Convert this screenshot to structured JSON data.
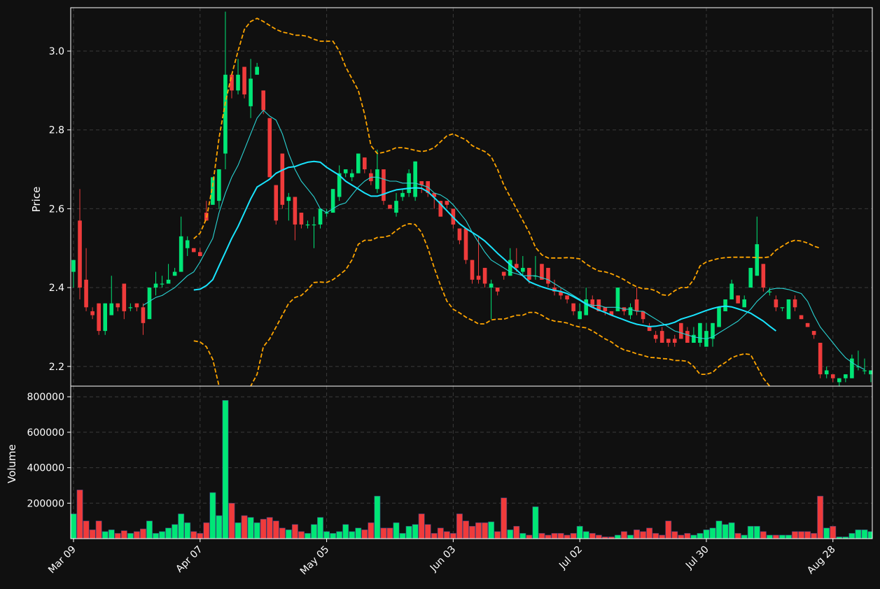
{
  "colors": {
    "background": "#101010",
    "up": "#00e676",
    "down": "#ef3b3b",
    "band": "#ffa500",
    "ma_fast": "#2ad4d4",
    "ma_slow": "#19e5ff",
    "grid": "#3a3a3a",
    "text": "#ffffff"
  },
  "chart_data": {
    "type": "candlestick",
    "title": "",
    "price_label": "Price",
    "volume_label": "Volume",
    "price_ylim": [
      2.15,
      3.11
    ],
    "volume_ylim": [
      0,
      860000
    ],
    "price_ticks": [
      "2.2",
      "2.4",
      "2.6",
      "2.8",
      "3.0"
    ],
    "volume_ticks": [
      "200000",
      "400000",
      "600000",
      "800000"
    ],
    "x_ticks": [
      {
        "index": 0,
        "label": "Mar 09"
      },
      {
        "index": 20,
        "label": "Apr 07"
      },
      {
        "index": 40,
        "label": "May 05"
      },
      {
        "index": 60,
        "label": "Jun 03"
      },
      {
        "index": 80,
        "label": "Jul 02"
      },
      {
        "index": 100,
        "label": "Jul 30"
      },
      {
        "index": 120,
        "label": "Aug 28"
      }
    ],
    "grid": true,
    "candles": [
      [
        2.44,
        2.47,
        2.4,
        2.47,
        140000
      ],
      [
        2.57,
        2.65,
        2.37,
        2.4,
        275000
      ],
      [
        2.42,
        2.5,
        2.34,
        2.35,
        100000
      ],
      [
        2.34,
        2.35,
        2.32,
        2.33,
        50000
      ],
      [
        2.36,
        2.36,
        2.28,
        2.29,
        100000
      ],
      [
        2.29,
        2.36,
        2.28,
        2.36,
        40000
      ],
      [
        2.33,
        2.43,
        2.33,
        2.36,
        50000
      ],
      [
        2.36,
        2.36,
        2.34,
        2.35,
        30000
      ],
      [
        2.41,
        2.41,
        2.32,
        2.34,
        45000
      ],
      [
        2.35,
        2.36,
        2.34,
        2.35,
        30000
      ],
      [
        2.36,
        2.36,
        2.34,
        2.35,
        40000
      ],
      [
        2.35,
        2.36,
        2.28,
        2.31,
        55000
      ],
      [
        2.32,
        2.4,
        2.32,
        2.4,
        100000
      ],
      [
        2.4,
        2.44,
        2.38,
        2.41,
        30000
      ],
      [
        2.41,
        2.43,
        2.4,
        2.41,
        40000
      ],
      [
        2.41,
        2.46,
        2.41,
        2.42,
        60000
      ],
      [
        2.43,
        2.45,
        2.43,
        2.44,
        80000
      ],
      [
        2.44,
        2.58,
        2.44,
        2.53,
        140000
      ],
      [
        2.5,
        2.53,
        2.48,
        2.52,
        90000
      ],
      [
        2.5,
        2.5,
        2.49,
        2.49,
        40000
      ],
      [
        2.49,
        2.5,
        2.48,
        2.48,
        30000
      ],
      [
        2.59,
        2.62,
        2.57,
        2.57,
        90000
      ],
      [
        2.61,
        2.68,
        2.61,
        2.68,
        260000
      ],
      [
        2.62,
        2.7,
        2.6,
        2.7,
        130000
      ],
      [
        2.74,
        3.1,
        2.7,
        2.94,
        780000
      ],
      [
        2.94,
        2.94,
        2.88,
        2.9,
        200000
      ],
      [
        2.9,
        2.98,
        2.89,
        2.94,
        90000
      ],
      [
        2.96,
        2.96,
        2.88,
        2.89,
        130000
      ],
      [
        2.86,
        2.98,
        2.83,
        2.93,
        120000
      ],
      [
        2.94,
        2.97,
        2.94,
        2.96,
        90000
      ],
      [
        2.9,
        2.9,
        2.84,
        2.85,
        110000
      ],
      [
        2.83,
        2.83,
        2.68,
        2.68,
        120000
      ],
      [
        2.66,
        2.66,
        2.56,
        2.57,
        100000
      ],
      [
        2.74,
        2.74,
        2.6,
        2.61,
        60000
      ],
      [
        2.62,
        2.64,
        2.57,
        2.63,
        50000
      ],
      [
        2.63,
        2.63,
        2.52,
        2.56,
        80000
      ],
      [
        2.59,
        2.59,
        2.55,
        2.56,
        40000
      ],
      [
        2.56,
        2.57,
        2.55,
        2.56,
        30000
      ],
      [
        2.56,
        2.58,
        2.5,
        2.56,
        80000
      ],
      [
        2.56,
        2.6,
        2.55,
        2.6,
        120000
      ],
      [
        2.59,
        2.6,
        2.58,
        2.59,
        40000
      ],
      [
        2.59,
        2.65,
        2.59,
        2.65,
        30000
      ],
      [
        2.63,
        2.71,
        2.62,
        2.69,
        40000
      ],
      [
        2.69,
        2.7,
        2.68,
        2.7,
        80000
      ],
      [
        2.68,
        2.7,
        2.67,
        2.69,
        40000
      ],
      [
        2.69,
        2.74,
        2.69,
        2.74,
        60000
      ],
      [
        2.73,
        2.73,
        2.69,
        2.7,
        50000
      ],
      [
        2.69,
        2.7,
        2.66,
        2.67,
        90000
      ],
      [
        2.65,
        2.75,
        2.64,
        2.7,
        240000
      ],
      [
        2.7,
        2.7,
        2.61,
        2.62,
        60000
      ],
      [
        2.61,
        2.61,
        2.6,
        2.6,
        60000
      ],
      [
        2.59,
        2.64,
        2.58,
        2.62,
        90000
      ],
      [
        2.63,
        2.65,
        2.62,
        2.64,
        30000
      ],
      [
        2.64,
        2.7,
        2.63,
        2.69,
        70000
      ],
      [
        2.63,
        2.72,
        2.62,
        2.72,
        80000
      ],
      [
        2.67,
        2.67,
        2.64,
        2.66,
        140000
      ],
      [
        2.67,
        2.67,
        2.63,
        2.64,
        80000
      ],
      [
        2.64,
        2.64,
        2.6,
        2.63,
        30000
      ],
      [
        2.62,
        2.62,
        2.58,
        2.58,
        60000
      ],
      [
        2.62,
        2.62,
        2.6,
        2.61,
        40000
      ],
      [
        2.6,
        2.6,
        2.55,
        2.56,
        30000
      ],
      [
        2.55,
        2.55,
        2.51,
        2.52,
        140000
      ],
      [
        2.55,
        2.55,
        2.46,
        2.47,
        100000
      ],
      [
        2.47,
        2.47,
        2.41,
        2.42,
        70000
      ],
      [
        2.43,
        2.53,
        2.41,
        2.42,
        90000
      ],
      [
        2.45,
        2.45,
        2.4,
        2.41,
        90000
      ],
      [
        2.4,
        2.42,
        2.32,
        2.41,
        95000
      ],
      [
        2.4,
        2.4,
        2.38,
        2.39,
        40000
      ],
      [
        2.44,
        2.44,
        2.42,
        2.43,
        230000
      ],
      [
        2.43,
        2.5,
        2.43,
        2.47,
        50000
      ],
      [
        2.46,
        2.5,
        2.44,
        2.45,
        70000
      ],
      [
        2.44,
        2.48,
        2.43,
        2.45,
        30000
      ],
      [
        2.45,
        2.45,
        2.41,
        2.42,
        20000
      ],
      [
        2.43,
        2.48,
        2.42,
        2.43,
        180000
      ],
      [
        2.46,
        2.46,
        2.42,
        2.42,
        30000
      ],
      [
        2.45,
        2.45,
        2.4,
        2.41,
        20000
      ],
      [
        2.4,
        2.42,
        2.38,
        2.39,
        30000
      ],
      [
        2.39,
        2.4,
        2.37,
        2.38,
        30000
      ],
      [
        2.38,
        2.38,
        2.36,
        2.37,
        20000
      ],
      [
        2.36,
        2.36,
        2.33,
        2.34,
        30000
      ],
      [
        2.32,
        2.36,
        2.32,
        2.34,
        70000
      ],
      [
        2.33,
        2.4,
        2.33,
        2.37,
        40000
      ],
      [
        2.37,
        2.38,
        2.35,
        2.35,
        30000
      ],
      [
        2.37,
        2.37,
        2.34,
        2.34,
        20000
      ],
      [
        2.35,
        2.35,
        2.33,
        2.34,
        10000
      ],
      [
        2.34,
        2.34,
        2.33,
        2.33,
        10000
      ],
      [
        2.34,
        2.4,
        2.34,
        2.4,
        20000
      ],
      [
        2.35,
        2.35,
        2.33,
        2.34,
        40000
      ],
      [
        2.33,
        2.36,
        2.32,
        2.35,
        20000
      ],
      [
        2.37,
        2.4,
        2.33,
        2.34,
        50000
      ],
      [
        2.34,
        2.34,
        2.31,
        2.32,
        40000
      ],
      [
        2.3,
        2.31,
        2.29,
        2.29,
        60000
      ],
      [
        2.28,
        2.29,
        2.26,
        2.27,
        30000
      ],
      [
        2.29,
        2.3,
        2.26,
        2.26,
        20000
      ],
      [
        2.27,
        2.27,
        2.25,
        2.26,
        100000
      ],
      [
        2.27,
        2.28,
        2.25,
        2.26,
        40000
      ],
      [
        2.31,
        2.31,
        2.27,
        2.27,
        20000
      ],
      [
        2.29,
        2.3,
        2.26,
        2.26,
        30000
      ],
      [
        2.26,
        2.3,
        2.26,
        2.28,
        20000
      ],
      [
        2.26,
        2.31,
        2.25,
        2.31,
        30000
      ],
      [
        2.25,
        2.31,
        2.25,
        2.29,
        50000
      ],
      [
        2.27,
        2.31,
        2.25,
        2.31,
        60000
      ],
      [
        2.3,
        2.35,
        2.3,
        2.35,
        100000
      ],
      [
        2.34,
        2.37,
        2.34,
        2.37,
        80000
      ],
      [
        2.37,
        2.42,
        2.37,
        2.41,
        90000
      ],
      [
        2.38,
        2.38,
        2.36,
        2.36,
        30000
      ],
      [
        2.35,
        2.38,
        2.35,
        2.37,
        20000
      ],
      [
        2.4,
        2.45,
        2.4,
        2.45,
        70000
      ],
      [
        2.43,
        2.58,
        2.43,
        2.51,
        70000
      ],
      [
        2.46,
        2.46,
        2.39,
        2.4,
        40000
      ],
      [
        2.39,
        2.4,
        2.38,
        2.39,
        20000
      ],
      [
        2.37,
        2.38,
        2.34,
        2.35,
        20000
      ],
      [
        2.35,
        2.35,
        2.34,
        2.35,
        20000
      ],
      [
        2.32,
        2.37,
        2.32,
        2.37,
        20000
      ],
      [
        2.37,
        2.38,
        2.34,
        2.35,
        40000
      ],
      [
        2.33,
        2.33,
        2.32,
        2.32,
        40000
      ],
      [
        2.31,
        2.31,
        2.3,
        2.3,
        40000
      ],
      [
        2.29,
        2.29,
        2.27,
        2.28,
        30000
      ],
      [
        2.26,
        2.26,
        2.17,
        2.18,
        240000
      ],
      [
        2.18,
        2.2,
        2.17,
        2.19,
        60000
      ],
      [
        2.18,
        2.18,
        2.16,
        2.17,
        70000
      ],
      [
        2.16,
        2.17,
        2.15,
        2.17,
        10000
      ],
      [
        2.17,
        2.18,
        2.16,
        2.18,
        10000
      ],
      [
        2.17,
        2.23,
        2.17,
        2.22,
        30000
      ],
      [
        2.2,
        2.24,
        2.19,
        2.2,
        50000
      ],
      [
        2.19,
        2.22,
        2.18,
        2.19,
        50000
      ],
      [
        2.18,
        2.19,
        2.16,
        2.19,
        40000
      ]
    ],
    "ma_fast": [
      null,
      null,
      null,
      null,
      null,
      null,
      null,
      null,
      null,
      null,
      null,
      2.355,
      2.365,
      2.375,
      2.38,
      2.39,
      2.4,
      2.415,
      2.43,
      2.44,
      2.465,
      2.495,
      2.525,
      2.59,
      2.64,
      2.68,
      2.71,
      2.75,
      2.79,
      2.83,
      2.85,
      2.835,
      2.825,
      2.79,
      2.74,
      2.7,
      2.67,
      2.65,
      2.63,
      2.6,
      2.59,
      2.6,
      2.61,
      2.615,
      2.635,
      2.655,
      2.67,
      2.68,
      2.68,
      2.675,
      2.67,
      2.67,
      2.665,
      2.665,
      2.665,
      2.66,
      2.655,
      2.64,
      2.635,
      2.625,
      2.61,
      2.59,
      2.57,
      2.54,
      2.515,
      2.49,
      2.47,
      2.46,
      2.45,
      2.44,
      2.435,
      2.43,
      2.43,
      2.43,
      2.425,
      2.42,
      2.41,
      2.4,
      2.39,
      2.38,
      2.37,
      2.36,
      2.355,
      2.355,
      2.35,
      2.35,
      2.35,
      2.345,
      2.345,
      2.34,
      2.34,
      2.33,
      2.32,
      2.31,
      2.3,
      2.29,
      2.285,
      2.28,
      2.275,
      2.272,
      2.27,
      2.275,
      2.285,
      2.295,
      2.305,
      2.315,
      2.33,
      2.345,
      2.365,
      2.38,
      2.395,
      2.398,
      2.398,
      2.395,
      2.39,
      2.385,
      2.365,
      2.33,
      2.3,
      2.28,
      2.26,
      2.24,
      2.222,
      2.21,
      2.2,
      2.192
    ],
    "ma_slow": [
      null,
      null,
      null,
      null,
      null,
      null,
      null,
      null,
      null,
      null,
      null,
      null,
      null,
      null,
      null,
      null,
      null,
      null,
      null,
      2.394,
      2.396,
      2.405,
      2.42,
      2.455,
      2.49,
      2.525,
      2.555,
      2.59,
      2.625,
      2.655,
      2.665,
      2.675,
      2.69,
      2.698,
      2.705,
      2.707,
      2.713,
      2.718,
      2.72,
      2.718,
      2.705,
      2.695,
      2.685,
      2.67,
      2.66,
      2.65,
      2.64,
      2.632,
      2.632,
      2.637,
      2.643,
      2.648,
      2.65,
      2.652,
      2.653,
      2.652,
      2.643,
      2.628,
      2.612,
      2.595,
      2.578,
      2.562,
      2.55,
      2.54,
      2.53,
      2.518,
      2.503,
      2.487,
      2.473,
      2.458,
      2.445,
      2.43,
      2.415,
      2.408,
      2.402,
      2.397,
      2.393,
      2.39,
      2.385,
      2.377,
      2.368,
      2.358,
      2.35,
      2.343,
      2.337,
      2.33,
      2.324,
      2.318,
      2.312,
      2.307,
      2.304,
      2.301,
      2.302,
      2.305,
      2.307,
      2.312,
      2.32,
      2.325,
      2.33,
      2.336,
      2.342,
      2.347,
      2.351,
      2.353,
      2.351,
      2.346,
      2.341,
      2.335,
      2.325,
      2.315,
      2.302,
      2.29
    ],
    "band_upper": [
      null,
      null,
      null,
      null,
      null,
      null,
      null,
      null,
      null,
      null,
      null,
      null,
      null,
      null,
      null,
      null,
      null,
      null,
      null,
      2.524,
      2.538,
      2.575,
      2.66,
      2.78,
      2.87,
      2.94,
      3.0,
      3.055,
      3.075,
      3.083,
      3.075,
      3.065,
      3.055,
      3.048,
      3.045,
      3.04,
      3.04,
      3.037,
      3.03,
      3.025,
      3.025,
      3.025,
      3.0,
      2.96,
      2.93,
      2.9,
      2.84,
      2.76,
      2.74,
      2.743,
      2.748,
      2.755,
      2.755,
      2.752,
      2.748,
      2.745,
      2.748,
      2.755,
      2.77,
      2.785,
      2.79,
      2.782,
      2.775,
      2.76,
      2.752,
      2.745,
      2.732,
      2.7,
      2.66,
      2.63,
      2.6,
      2.57,
      2.54,
      2.502,
      2.483,
      2.475,
      2.475,
      2.475,
      2.476,
      2.475,
      2.473,
      2.46,
      2.45,
      2.442,
      2.44,
      2.435,
      2.428,
      2.42,
      2.41,
      2.402,
      2.397,
      2.397,
      2.392,
      2.382,
      2.38,
      2.392,
      2.4,
      2.4,
      2.42,
      2.455,
      2.465,
      2.47,
      2.474,
      2.476,
      2.477,
      2.477,
      2.477,
      2.477,
      2.476,
      2.476,
      2.478,
      2.495,
      2.505,
      2.515,
      2.52,
      2.518,
      2.513,
      2.505,
      2.5
    ],
    "band_lower": [
      null,
      null,
      null,
      null,
      null,
      null,
      null,
      null,
      null,
      null,
      null,
      null,
      null,
      null,
      null,
      null,
      null,
      null,
      null,
      2.265,
      2.262,
      2.25,
      2.218,
      2.15,
      2.118,
      2.08,
      2.09,
      2.12,
      2.15,
      2.18,
      2.25,
      2.27,
      2.3,
      2.33,
      2.36,
      2.375,
      2.38,
      2.395,
      2.413,
      2.414,
      2.413,
      2.42,
      2.432,
      2.445,
      2.47,
      2.51,
      2.52,
      2.52,
      2.527,
      2.528,
      2.532,
      2.545,
      2.556,
      2.562,
      2.56,
      2.54,
      2.5,
      2.45,
      2.405,
      2.366,
      2.345,
      2.336,
      2.325,
      2.317,
      2.308,
      2.308,
      2.318,
      2.32,
      2.32,
      2.325,
      2.33,
      2.33,
      2.337,
      2.337,
      2.33,
      2.32,
      2.315,
      2.313,
      2.31,
      2.304,
      2.3,
      2.298,
      2.29,
      2.28,
      2.27,
      2.262,
      2.25,
      2.242,
      2.238,
      2.232,
      2.228,
      2.223,
      2.222,
      2.22,
      2.219,
      2.215,
      2.215,
      2.213,
      2.2,
      2.18,
      2.18,
      2.185,
      2.2,
      2.21,
      2.222,
      2.228,
      2.232,
      2.23,
      2.2,
      2.17,
      2.15,
      2.12,
      2.09,
      2.07
    ]
  }
}
